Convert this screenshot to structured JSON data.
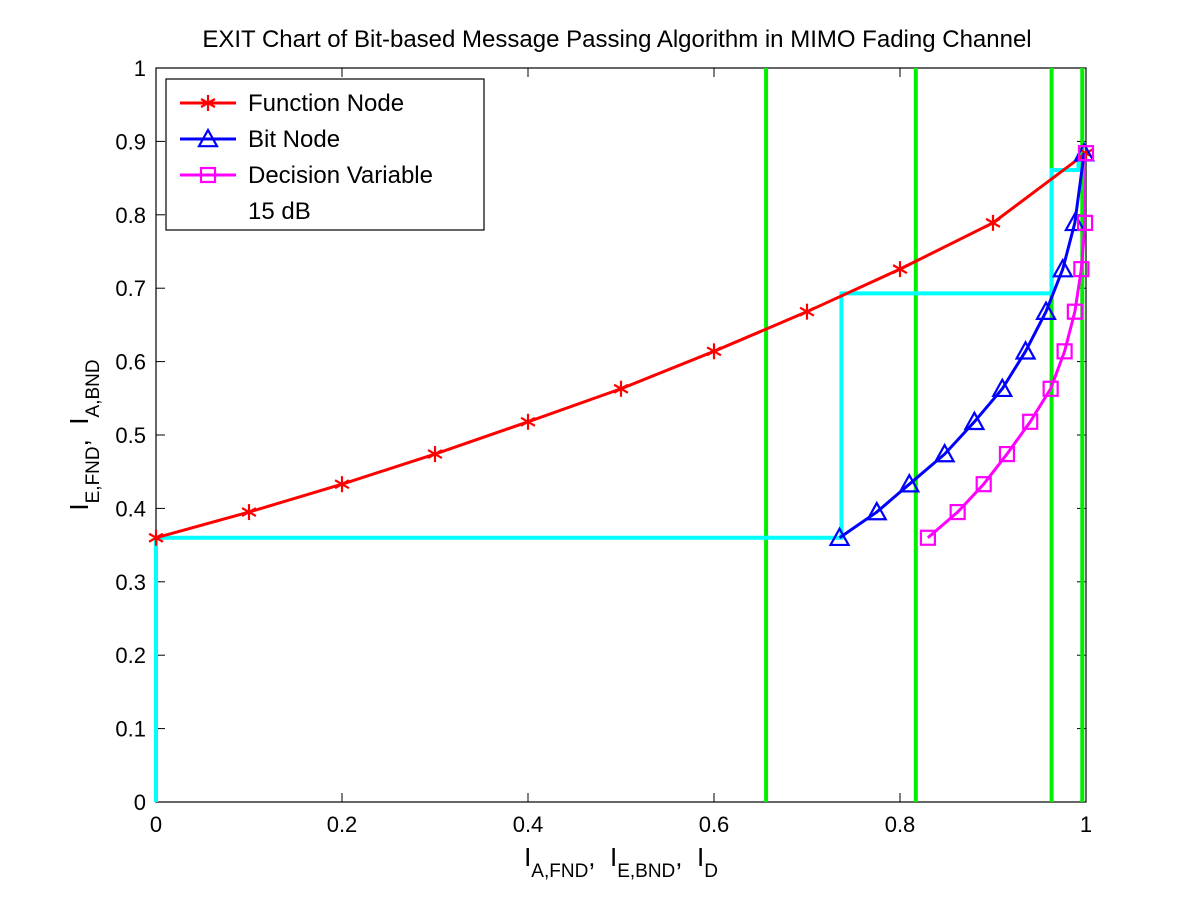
{
  "chart_data": {
    "type": "line",
    "title": "EXIT Chart of Bit-based Message Passing Algorithm in MIMO Fading Channel",
    "xlabel": {
      "parts": [
        {
          "text": "I",
          "sub": "A,FND"
        },
        {
          "text": ",  I",
          "sub": "E,BND"
        },
        {
          "text": ",  I",
          "sub": "D"
        }
      ]
    },
    "ylabel": {
      "parts": [
        {
          "text": "I",
          "sub": "E,FND"
        },
        {
          "text": ",  I",
          "sub": "A,BND"
        }
      ]
    },
    "xlim": [
      0,
      1
    ],
    "ylim": [
      0,
      1
    ],
    "xticks": [
      0,
      0.2,
      0.4,
      0.6,
      0.8,
      1
    ],
    "xtick_labels": [
      "0",
      "0.2",
      "0.4",
      "0.6",
      "0.8",
      "1"
    ],
    "yticks": [
      0,
      0.1,
      0.2,
      0.3,
      0.4,
      0.5,
      0.6,
      0.7,
      0.8,
      0.9,
      1
    ],
    "ytick_labels": [
      "0",
      "0.1",
      "0.2",
      "0.3",
      "0.4",
      "0.5",
      "0.6",
      "0.7",
      "0.8",
      "0.9",
      "1"
    ],
    "grid": false,
    "legend": {
      "position": "top-left",
      "note": "15 dB"
    },
    "series": [
      {
        "name": "Function Node",
        "color": "#ff0000",
        "marker": "asterisk",
        "x": [
          0,
          0.1,
          0.2,
          0.3,
          0.4,
          0.5,
          0.6,
          0.7,
          0.8,
          0.9,
          1.0
        ],
        "y": [
          0.36,
          0.395,
          0.433,
          0.474,
          0.518,
          0.563,
          0.614,
          0.668,
          0.726,
          0.789,
          0.884
        ]
      },
      {
        "name": "Bit Node",
        "color": "#0000ff",
        "marker": "triangle",
        "x": [
          0.735,
          0.775,
          0.81,
          0.848,
          0.88,
          0.91,
          0.935,
          0.957,
          0.975,
          0.988,
          0.998
        ],
        "y": [
          0.36,
          0.395,
          0.433,
          0.474,
          0.518,
          0.563,
          0.614,
          0.668,
          0.726,
          0.789,
          0.884
        ]
      },
      {
        "name": "Decision Variable",
        "color": "#ff00ff",
        "marker": "square",
        "x": [
          0.83,
          0.862,
          0.89,
          0.915,
          0.94,
          0.962,
          0.977,
          0.988,
          0.995,
          0.999,
          1.0
        ],
        "y": [
          0.36,
          0.395,
          0.433,
          0.474,
          0.518,
          0.563,
          0.614,
          0.668,
          0.726,
          0.789,
          0.884
        ]
      }
    ],
    "trajectory": {
      "color": "#00ffff",
      "x": [
        0,
        0,
        0.737,
        0.737,
        0.963,
        0.963,
        0.992,
        0.992
      ],
      "y": [
        0,
        0.36,
        0.36,
        0.693,
        0.693,
        0.861,
        0.861,
        0.884
      ]
    },
    "vertical_lines": {
      "color": "#00ee00",
      "x": [
        0.656,
        0.817,
        0.963,
        0.996
      ]
    }
  }
}
